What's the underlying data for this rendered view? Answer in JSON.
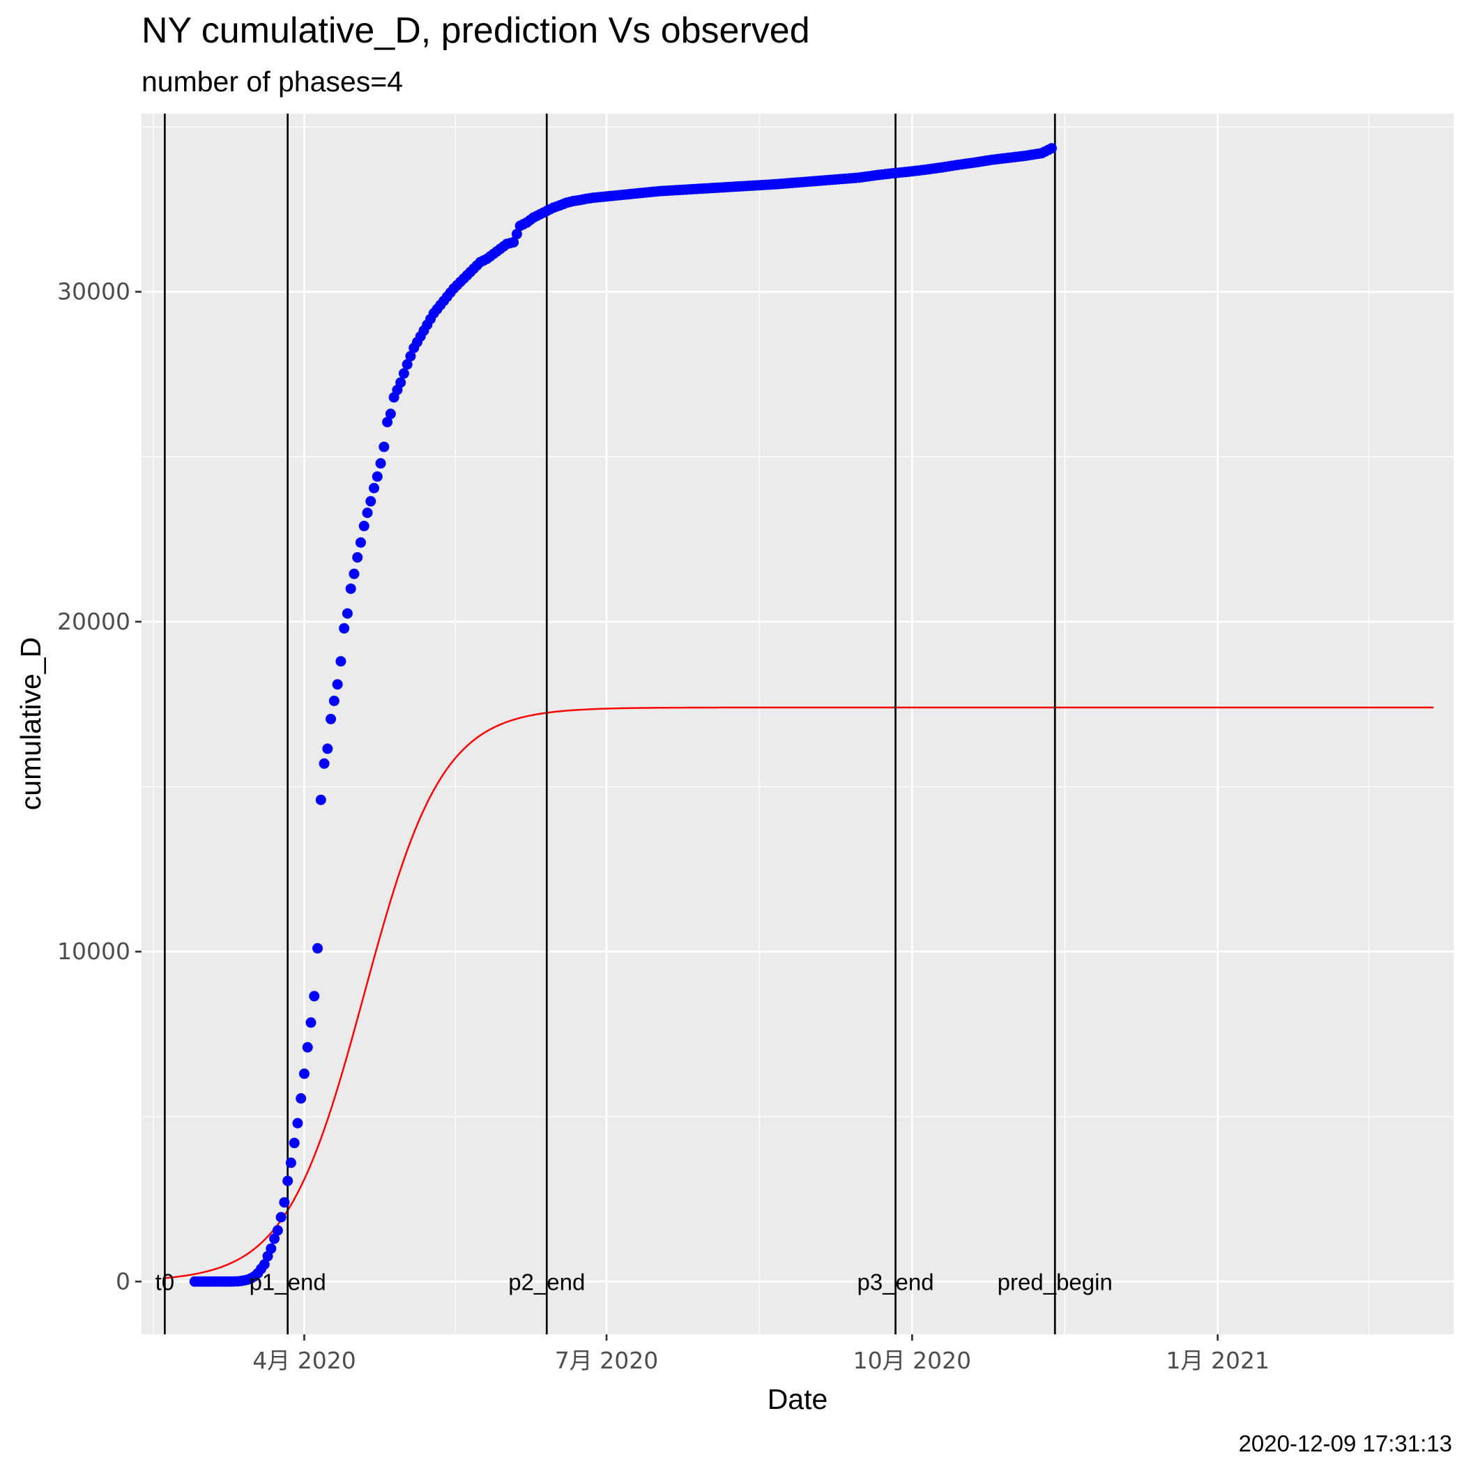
{
  "chart_data": {
    "type": "scatter",
    "title": "NY cumulative_D,  prediction Vs observed",
    "subtitle": "number of phases=4",
    "xlabel": "Date",
    "ylabel": "cumulative_D",
    "caption": "2020-12-09 17:31:13",
    "x_range": [
      "2020-02-12",
      "2021-03-13"
    ],
    "ylim": [
      -1600,
      35400
    ],
    "x_ticks": [
      {
        "date": "2020-04-01",
        "label": "4月 2020"
      },
      {
        "date": "2020-07-01",
        "label": "7月 2020"
      },
      {
        "date": "2020-10-01",
        "label": "10月 2020"
      },
      {
        "date": "2021-01-01",
        "label": "1月 2021"
      }
    ],
    "y_ticks": [
      0,
      10000,
      20000,
      30000
    ],
    "grid": true,
    "vertical_lines": [
      {
        "label": "t0",
        "date": "2020-02-19"
      },
      {
        "label": "p1_end",
        "date": "2020-03-27"
      },
      {
        "label": "p2_end",
        "date": "2020-06-13"
      },
      {
        "label": "p3_end",
        "date": "2020-09-26"
      },
      {
        "label": "pred_begin",
        "date": "2020-11-13"
      }
    ],
    "colors": {
      "observed": "#0000ff",
      "predicted": "#ff0000",
      "vlines": "#000000",
      "panel": "#ebebeb",
      "grid": "#ffffff"
    },
    "observed": {
      "name": "",
      "start_date": "2020-02-28",
      "x": [
        0,
        4,
        7,
        9,
        11,
        12,
        13,
        14,
        15,
        16,
        17,
        18,
        19,
        20,
        21,
        22,
        23,
        24,
        25,
        26,
        27,
        28,
        29,
        30,
        31,
        32,
        33,
        34,
        35,
        36,
        37,
        38,
        39,
        40,
        41,
        42,
        43,
        44,
        45,
        46,
        47,
        48,
        49,
        50,
        51,
        52,
        53,
        54,
        55,
        56,
        57,
        58,
        59,
        60,
        62,
        64,
        66,
        68,
        70,
        72,
        74,
        76,
        78,
        80,
        82,
        84,
        86,
        88,
        90,
        92,
        94,
        96,
        98,
        100,
        102,
        104,
        106,
        108,
        110,
        112,
        114,
        116,
        117,
        118,
        120,
        125,
        130,
        135,
        140,
        145,
        150,
        155,
        160,
        165,
        170,
        175,
        180,
        185,
        190,
        195,
        200,
        205,
        210,
        215,
        220,
        225,
        230,
        235,
        240,
        245,
        250,
        255,
        258
      ],
      "y": [
        0,
        0,
        0,
        0,
        0,
        4,
        7,
        18,
        35,
        60,
        100,
        160,
        250,
        385,
        520,
        770,
        1000,
        1300,
        1550,
        1950,
        2400,
        3050,
        3600,
        4200,
        4800,
        5550,
        6300,
        7100,
        7850,
        8650,
        10100,
        14600,
        15700,
        16150,
        17050,
        17600,
        18100,
        18800,
        19800,
        20250,
        21000,
        21450,
        21950,
        22400,
        22900,
        23300,
        23650,
        24050,
        24400,
        24800,
        25300,
        26050,
        26300,
        26800,
        27250,
        27800,
        28300,
        28650,
        29000,
        29350,
        29600,
        29850,
        30100,
        30300,
        30500,
        30700,
        30900,
        31000,
        31150,
        31300,
        31450,
        31500,
        32000,
        32100,
        32250,
        32350,
        32450,
        32550,
        32620,
        32700,
        32750,
        32780,
        32800,
        32820,
        32850,
        32900,
        32950,
        33000,
        33050,
        33080,
        33110,
        33140,
        33170,
        33200,
        33230,
        33260,
        33300,
        33340,
        33380,
        33420,
        33460,
        33530,
        33590,
        33640,
        33700,
        33770,
        33850,
        33920,
        34000,
        34060,
        34120,
        34200,
        34350
      ]
    },
    "predicted": {
      "name": "",
      "start_date": "2020-02-19",
      "ceiling": 17400,
      "inflection_day": 60,
      "growth_rate": 0.085,
      "end_date": "2021-03-07"
    }
  }
}
